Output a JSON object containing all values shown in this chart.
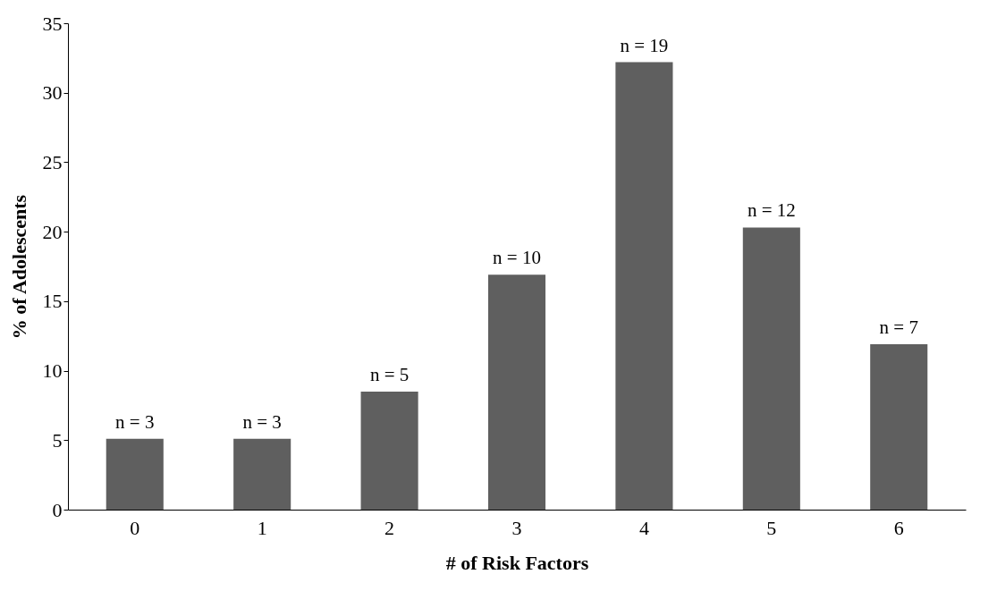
{
  "chart_data": {
    "type": "bar",
    "xlabel": "# of Risk Factors",
    "ylabel": "% of Adolescents",
    "categories": [
      "0",
      "1",
      "2",
      "3",
      "4",
      "5",
      "6"
    ],
    "values": [
      5.1,
      5.1,
      8.5,
      16.9,
      32.2,
      20.3,
      11.9
    ],
    "annotations": [
      {
        "text": "n = 3",
        "x": "0",
        "y": 5.1
      },
      {
        "text": "n = 3",
        "x": "1",
        "y": 5.1
      },
      {
        "text": "n = 5",
        "x": "2",
        "y": 8.5
      },
      {
        "text": "n = 10",
        "x": "3",
        "y": 16.9
      },
      {
        "text": "n = 19",
        "x": "4",
        "y": 32.2
      },
      {
        "text": "n = 12",
        "x": "5",
        "y": 20.3
      },
      {
        "text": "n = 7",
        "x": "6",
        "y": 11.9
      }
    ],
    "color": "#5f5f5f",
    "ylim": [
      0,
      35
    ],
    "yticks": [
      0,
      5,
      10,
      15,
      20,
      25,
      30,
      35
    ],
    "grid": false
  }
}
